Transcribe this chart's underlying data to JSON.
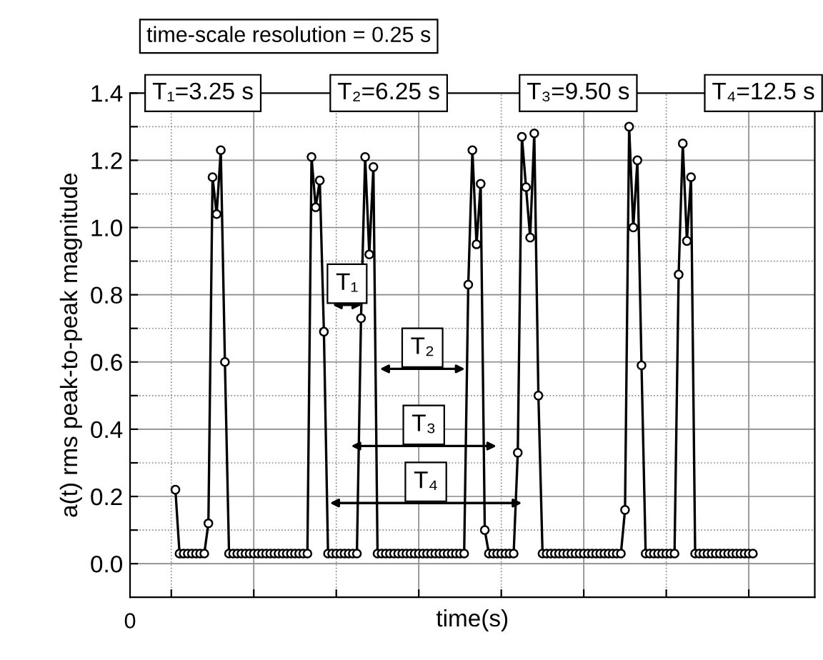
{
  "chart_data": {
    "type": "line",
    "xlabel": "time(s)",
    "ylabel": "a(t) rms peak-to-peak magnitude",
    "annotations": [
      "time-scale resolution = 0.25 s",
      "T₁=3.25 s",
      "T₂=6.25 s",
      "T₃=9.50 s",
      "T₄=12.5 s",
      "T₁",
      "T₂",
      "T₃",
      "T₄",
      "0"
    ],
    "categories": [
      null,
      null,
      null,
      null,
      null,
      null,
      null,
      null,
      null,
      null,
      null,
      null,
      null,
      null,
      null,
      null,
      null,
      null,
      null,
      null,
      null,
      null,
      null,
      null,
      null,
      null,
      null,
      null,
      null,
      null,
      null,
      null,
      null,
      null,
      null,
      null,
      null,
      null,
      null,
      null,
      null,
      null,
      null,
      null,
      null,
      null,
      null,
      null,
      null,
      null,
      null,
      null,
      null,
      null,
      null,
      null,
      null,
      null,
      null,
      null,
      null,
      null,
      null,
      null,
      null,
      null,
      null,
      null,
      null,
      null,
      null,
      null,
      null,
      null,
      null,
      null,
      null,
      null,
      null,
      null,
      null,
      null,
      null,
      null,
      null,
      null,
      null,
      null,
      null,
      null,
      null,
      null,
      null,
      null,
      null,
      null,
      null,
      null,
      null,
      null,
      null,
      null,
      null,
      null,
      null,
      null,
      null,
      null,
      null,
      null,
      null,
      null,
      null,
      null,
      null,
      null,
      null,
      null,
      null,
      null,
      null,
      null,
      null,
      null,
      null,
      null,
      null,
      null,
      null,
      null,
      null,
      null,
      null,
      null,
      null,
      null,
      null,
      null,
      null,
      null,
      null
    ],
    "series": [
      {
        "color": "#000000",
        "values": [
          0.22,
          0.03,
          0.03,
          0.03,
          0.03,
          0.03,
          0.03,
          0.03,
          0.12,
          1.15,
          1.04,
          1.23,
          0.6,
          0.03,
          0.03,
          0.03,
          0.03,
          0.03,
          0.03,
          0.03,
          0.03,
          0.03,
          0.03,
          0.03,
          0.03,
          0.03,
          0.03,
          0.03,
          0.03,
          0.03,
          0.03,
          0.03,
          0.03,
          1.21,
          1.06,
          1.14,
          0.69,
          0.03,
          0.03,
          0.03,
          0.03,
          0.03,
          0.03,
          0.03,
          0.03,
          0.73,
          1.21,
          0.92,
          1.18,
          0.03,
          0.03,
          0.03,
          0.03,
          0.03,
          0.03,
          0.03,
          0.03,
          0.03,
          0.03,
          0.03,
          0.03,
          0.03,
          0.03,
          0.03,
          0.03,
          0.03,
          0.03,
          0.03,
          0.03,
          0.03,
          0.03,
          0.83,
          1.23,
          0.95,
          1.13,
          0.1,
          0.03,
          0.03,
          0.03,
          0.03,
          0.03,
          0.03,
          0.03,
          0.33,
          1.27,
          1.12,
          0.97,
          1.28,
          0.5,
          0.03,
          0.03,
          0.03,
          0.03,
          0.03,
          0.03,
          0.03,
          0.03,
          0.03,
          0.03,
          0.03,
          0.03,
          0.03,
          0.03,
          0.03,
          0.03,
          0.03,
          0.03,
          0.03,
          0.03,
          0.16,
          1.3,
          1.0,
          1.2,
          0.59,
          0.03,
          0.03,
          0.03,
          0.03,
          0.03,
          0.03,
          0.03,
          0.03,
          0.86,
          1.25,
          0.96,
          1.15,
          0.03,
          0.03,
          0.03,
          0.03,
          0.03,
          0.03,
          0.03,
          0.03,
          0.03,
          0.03,
          0.03,
          0.03,
          0.03,
          0.03,
          0.03
        ]
      }
    ],
    "ylim": [
      -0.1,
      1.4
    ],
    "yticks": [
      {
        "value": 0,
        "label": "0.0"
      },
      {
        "value": 0.1,
        "label": null
      },
      {
        "value": 0.2,
        "label": "0.2"
      },
      {
        "value": 0.3,
        "label": null
      },
      {
        "value": 0.4,
        "label": "0.4"
      },
      {
        "value": 0.5,
        "label": null
      },
      {
        "value": 0.6,
        "label": "0.6"
      },
      {
        "value": 0.7,
        "label": null
      },
      {
        "value": 0.8,
        "label": "0.8"
      },
      {
        "value": 0.9,
        "label": null
      },
      {
        "value": 1.0,
        "label": "1.0"
      },
      {
        "value": 1.1,
        "label": null
      },
      {
        "value": 1.2,
        "label": "1.2"
      },
      {
        "value": 1.3,
        "label": null
      },
      {
        "value": 1.4,
        "label": "1.4"
      }
    ],
    "tick_labels": "y",
    "grid": true,
    "marker": "circle",
    "line_style": "solid"
  }
}
